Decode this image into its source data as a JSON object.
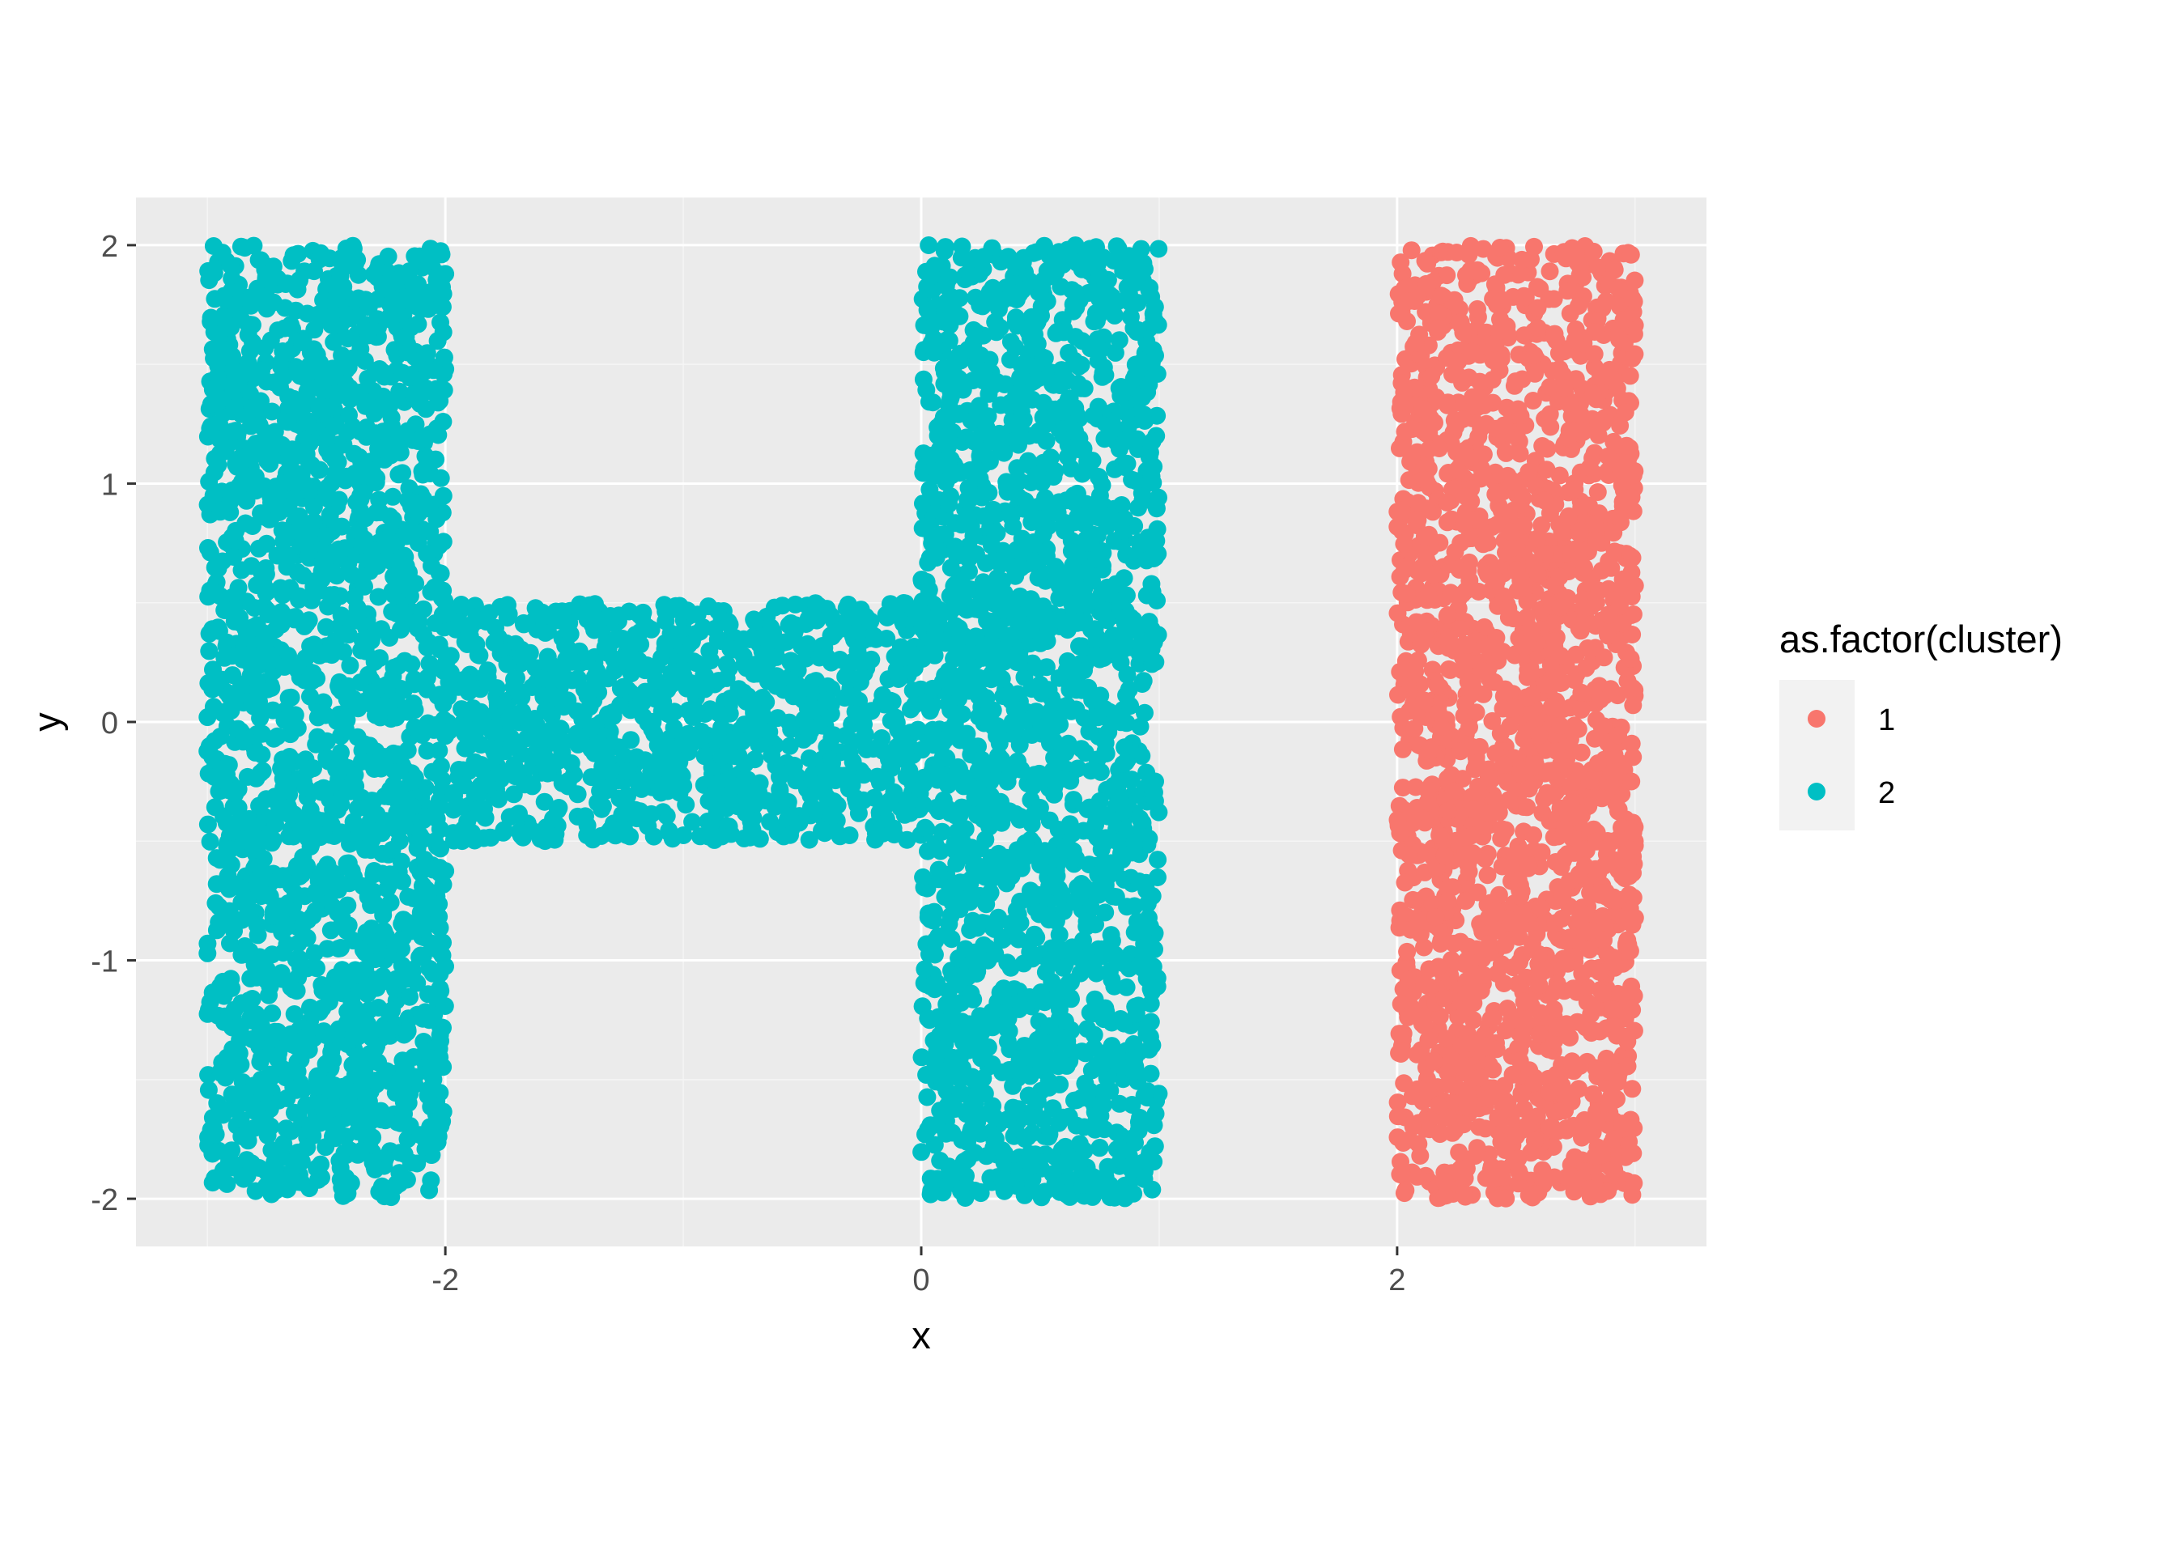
{
  "chart_data": {
    "type": "scatter",
    "title": "",
    "xlabel": "x",
    "ylabel": "y",
    "xlim": [
      -3.3,
      3.3
    ],
    "ylim": [
      -2.2,
      2.2
    ],
    "x_ticks": [
      -2,
      0,
      2
    ],
    "x_tick_labels": [
      "-2",
      "0",
      "2"
    ],
    "y_ticks": [
      -2,
      -1,
      0,
      1,
      2
    ],
    "y_tick_labels": [
      "-2",
      "-1",
      "0",
      "1",
      "2"
    ],
    "grid": true,
    "legend": {
      "title": "as.factor(cluster)",
      "placement": "right",
      "entries": [
        "1",
        "2"
      ]
    },
    "series": [
      {
        "name": "1",
        "color": "#F8766D",
        "regions": [
          {
            "x_range": [
              2.0,
              3.0
            ],
            "y_range": [
              -2.0,
              2.0
            ],
            "count": 2000
          }
        ]
      },
      {
        "name": "2",
        "color": "#00BFC4",
        "regions": [
          {
            "x_range": [
              -3.0,
              -2.0
            ],
            "y_range": [
              -2.0,
              2.0
            ],
            "count": 2000
          },
          {
            "x_range": [
              -2.0,
              0.0
            ],
            "y_range": [
              -0.5,
              0.5
            ],
            "count": 1000
          },
          {
            "x_range": [
              0.0,
              1.0
            ],
            "y_range": [
              -2.0,
              2.0
            ],
            "count": 2000
          }
        ]
      }
    ],
    "colors": {
      "panel_background": "#EBEBEB",
      "grid_major": "#FFFFFF",
      "grid_minor": "#F5F5F5",
      "legend_key_background": "#F2F2F2"
    }
  }
}
